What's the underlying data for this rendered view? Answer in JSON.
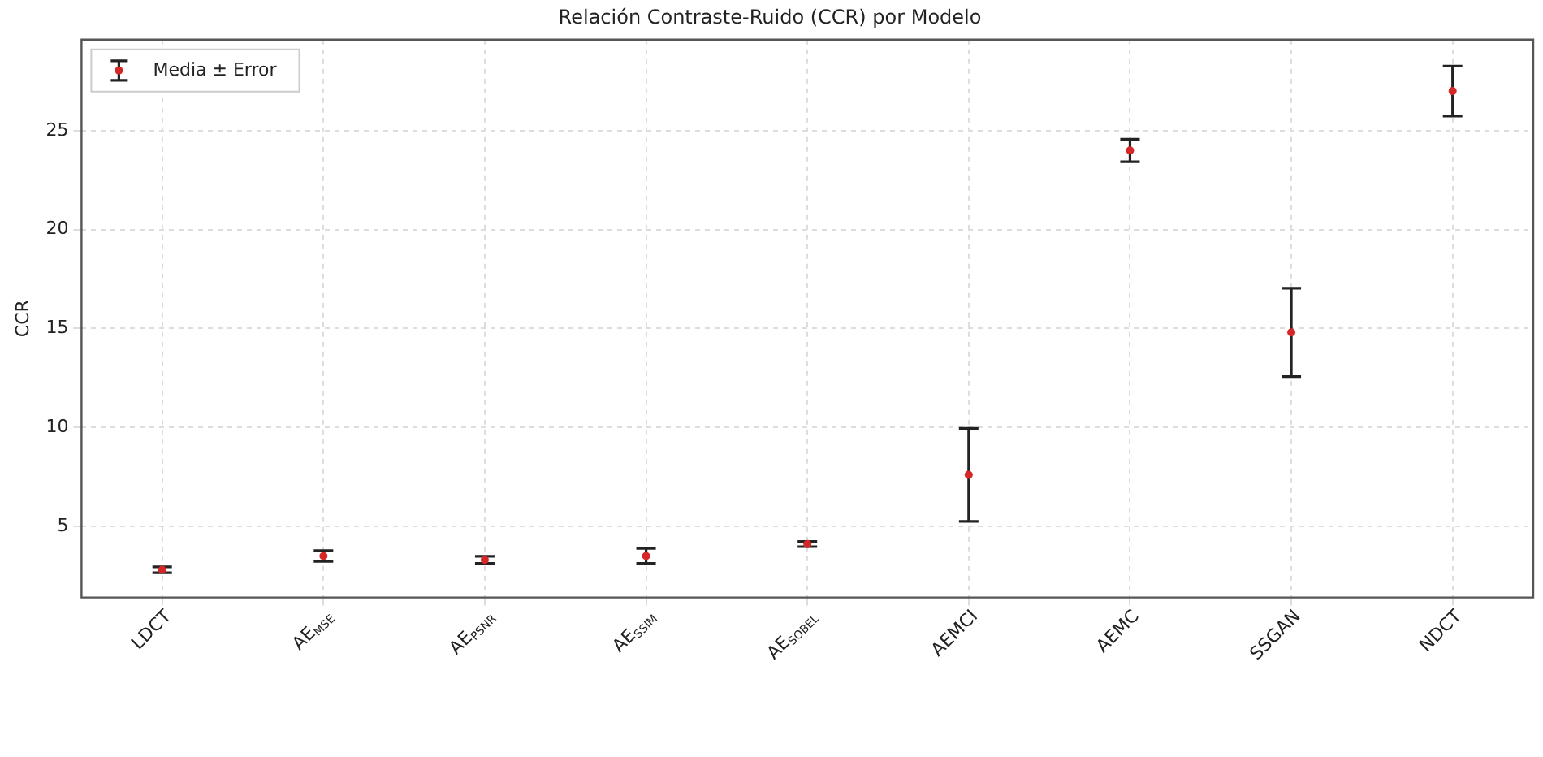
{
  "chart_data": {
    "type": "scatter",
    "title": "Relación Contraste-Ruido (CCR) por Modelo",
    "ylabel": "CCR",
    "categories": [
      "LDCT",
      "AE$_{MSE}$",
      "AE$_{PSNR}$",
      "AE$_{SSIM}$",
      "AE$_{SOBEL}$",
      "AEMCI",
      "AEMC",
      "SSGAN",
      "NDCT"
    ],
    "series": [
      {
        "name": "Media ± Error",
        "color": "#d62728",
        "values": [
          2.8,
          3.5,
          3.3,
          3.5,
          4.1,
          7.6,
          24.0,
          14.8,
          27.0
        ],
        "errors": [
          0.15,
          0.27,
          0.18,
          0.38,
          0.13,
          2.35,
          0.57,
          2.23,
          1.26
        ]
      }
    ],
    "ylim": [
      1.4,
      29.6
    ],
    "yticks": [
      5,
      10,
      15,
      20,
      25
    ],
    "grid": true,
    "legend": "top left",
    "marker": "circle"
  }
}
